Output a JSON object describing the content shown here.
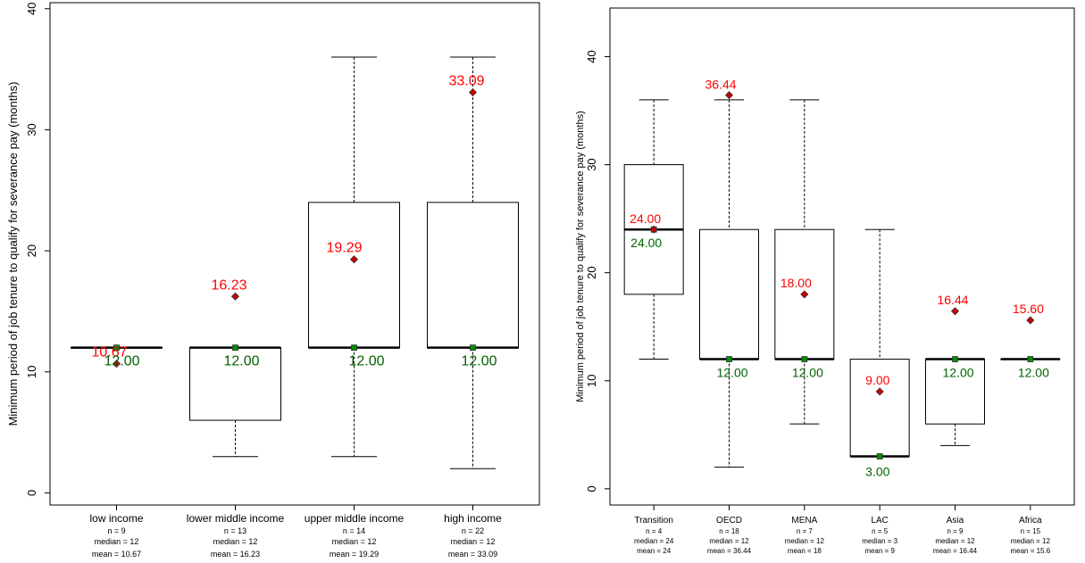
{
  "colors": {
    "mean": "#ff0000",
    "median": "#006400",
    "mean_marker": "#cc0000",
    "median_marker": "#009000"
  },
  "chart_data": [
    {
      "type": "box",
      "ylabel": "Minimum period of job tenure to qualify for severance pay (months)",
      "ylim": [
        -1,
        40.5
      ],
      "yticks": [
        0,
        10,
        20,
        30,
        40
      ],
      "categories": [
        "low income",
        "lower middle income",
        "upper middle income",
        "high income"
      ],
      "n": [
        "n = 9",
        "n = 13",
        "n = 14",
        "n = 22"
      ],
      "median_text": [
        "median = 12",
        "median = 12",
        "median = 12",
        "median = 12"
      ],
      "mean_text": [
        "mean = 10.67",
        "mean = 16.23",
        "mean = 19.29",
        "mean = 33.09"
      ],
      "boxes": [
        {
          "whisker_low": 12,
          "q1": 12,
          "median": 12,
          "q3": 12,
          "whisker_high": 12
        },
        {
          "whisker_low": 3,
          "q1": 6,
          "median": 12,
          "q3": 12,
          "whisker_high": 12
        },
        {
          "whisker_low": 3,
          "q1": 12,
          "median": 12,
          "q3": 24,
          "whisker_high": 36
        },
        {
          "whisker_low": 2,
          "q1": 12,
          "median": 12,
          "q3": 24,
          "whisker_high": 36
        }
      ],
      "means": [
        10.67,
        16.23,
        19.29,
        33.09
      ],
      "mean_labels": [
        "10.67",
        "16.23",
        "19.29",
        "33.09"
      ],
      "medians": [
        12,
        12,
        12,
        12
      ],
      "median_labels": [
        "12.00",
        "12.00",
        "12.00",
        "12.00"
      ]
    },
    {
      "type": "box",
      "ylabel": "Minimum period of job tenure to qualify for severance pay (months)",
      "ylim": [
        -1.5,
        44.5
      ],
      "yticks": [
        0,
        10,
        20,
        30,
        40
      ],
      "categories": [
        "Transition",
        "OECD",
        "MENA",
        "LAC",
        "Asia",
        "Africa"
      ],
      "n": [
        "n = 4",
        "n = 18",
        "n = 7",
        "n = 5",
        "n = 9",
        "n = 15"
      ],
      "median_text": [
        "median = 24",
        "median = 12",
        "median = 12",
        "median = 3",
        "median = 12",
        "median = 12"
      ],
      "mean_text": [
        "mean = 24",
        "mean = 36.44",
        "mean = 18",
        "mean = 9",
        "mean = 16.44",
        "mean = 15.6"
      ],
      "boxes": [
        {
          "whisker_low": 12,
          "q1": 18,
          "median": 24,
          "q3": 30,
          "whisker_high": 36
        },
        {
          "whisker_low": 2,
          "q1": 12,
          "median": 12,
          "q3": 24,
          "whisker_high": 36
        },
        {
          "whisker_low": 6,
          "q1": 12,
          "median": 12,
          "q3": 24,
          "whisker_high": 36
        },
        {
          "whisker_low": 3,
          "q1": 3,
          "median": 3,
          "q3": 12,
          "whisker_high": 24
        },
        {
          "whisker_low": 4,
          "q1": 6,
          "median": 12,
          "q3": 12,
          "whisker_high": 12
        },
        {
          "whisker_low": 12,
          "q1": 12,
          "median": 12,
          "q3": 12,
          "whisker_high": 12
        }
      ],
      "means": [
        24,
        36.44,
        18,
        9,
        16.44,
        15.6
      ],
      "mean_labels": [
        "24.00",
        "36.44",
        "18.00",
        "9.00",
        "16.44",
        "15.60"
      ],
      "medians": [
        24,
        12,
        12,
        3,
        12,
        12
      ],
      "median_labels": [
        "24.00",
        "12.00",
        "12.00",
        "3.00",
        "12.00",
        "12.00"
      ]
    }
  ]
}
